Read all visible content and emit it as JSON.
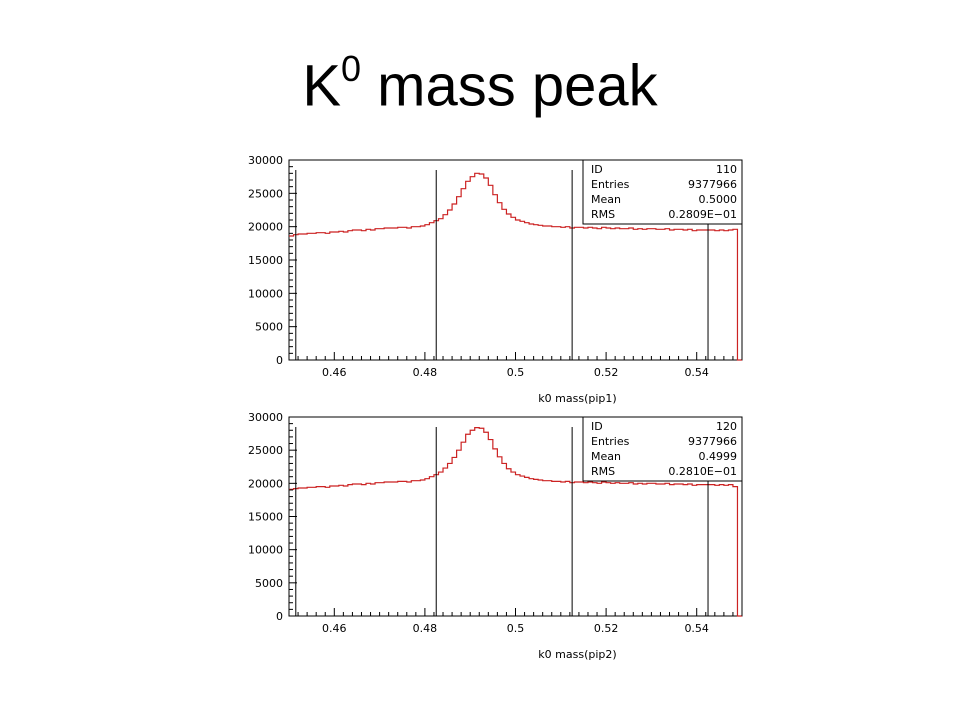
{
  "slide": {
    "title_main": "K",
    "title_sup": "0",
    "title_rest": " mass peak"
  },
  "style": {
    "line_color": "#cc2222",
    "axis_color": "#000000"
  },
  "chart_data": [
    {
      "type": "histogram",
      "xlabel": "k0 mass(pip1)",
      "ylabel": "",
      "xlim": [
        0.45,
        0.55
      ],
      "ylim": [
        0,
        30000
      ],
      "grid": false,
      "xticks": [
        "0.46",
        "0.48",
        "0.5",
        "0.52",
        "0.54"
      ],
      "yticks": [
        "0",
        "5000",
        "10000",
        "15000",
        "20000",
        "25000",
        "30000"
      ],
      "vertical_lines": [
        0.4515,
        0.4825,
        0.5125,
        0.5425
      ],
      "stats": {
        "ID": "110",
        "Entries": "9377966",
        "Mean": "0.5000",
        "RMS": "0.2809E−01"
      },
      "bins_x_start": 0.45,
      "bin_width": 0.001,
      "values": [
        18600,
        18800,
        18900,
        18900,
        19000,
        19000,
        19100,
        19100,
        19000,
        19200,
        19200,
        19300,
        19200,
        19400,
        19500,
        19500,
        19400,
        19600,
        19500,
        19700,
        19700,
        19800,
        19800,
        19800,
        19900,
        19900,
        19800,
        20000,
        20000,
        20100,
        20300,
        20600,
        20900,
        21200,
        21800,
        22500,
        23400,
        24500,
        25700,
        26800,
        27500,
        28000,
        27900,
        27300,
        26200,
        24800,
        23600,
        22600,
        21900,
        21400,
        21000,
        20800,
        20600,
        20400,
        20300,
        20200,
        20100,
        20100,
        20000,
        20000,
        19900,
        20000,
        19800,
        19900,
        19900,
        19800,
        19900,
        19800,
        19700,
        19900,
        19800,
        19700,
        19800,
        19700,
        19700,
        19800,
        19600,
        19700,
        19600,
        19700,
        19700,
        19600,
        19600,
        19700,
        19500,
        19600,
        19600,
        19500,
        19600,
        19400,
        19500,
        19500,
        19500,
        19500,
        19400,
        19500,
        19400,
        19500,
        19600,
        0
      ]
    },
    {
      "type": "histogram",
      "xlabel": "k0 mass(pip2)",
      "ylabel": "",
      "xlim": [
        0.45,
        0.55
      ],
      "ylim": [
        0,
        30000
      ],
      "grid": false,
      "xticks": [
        "0.46",
        "0.48",
        "0.5",
        "0.52",
        "0.54"
      ],
      "yticks": [
        "0",
        "5000",
        "10000",
        "15000",
        "20000",
        "25000",
        "30000"
      ],
      "vertical_lines": [
        0.4515,
        0.4825,
        0.5125,
        0.5425
      ],
      "stats": {
        "ID": "120",
        "Entries": "9377966",
        "Mean": "0.4999",
        "RMS": "0.2810E−01"
      },
      "bins_x_start": 0.45,
      "bin_width": 0.001,
      "values": [
        19100,
        19200,
        19300,
        19300,
        19400,
        19400,
        19500,
        19500,
        19400,
        19600,
        19600,
        19700,
        19600,
        19800,
        19900,
        19900,
        19800,
        20000,
        19900,
        20100,
        20100,
        20200,
        20200,
        20200,
        20300,
        20300,
        20200,
        20400,
        20400,
        20500,
        20700,
        21000,
        21300,
        21700,
        22300,
        23000,
        23900,
        25000,
        26200,
        27400,
        28000,
        28400,
        28300,
        27700,
        26600,
        25200,
        24000,
        23000,
        22200,
        21700,
        21300,
        21100,
        20900,
        20700,
        20600,
        20500,
        20400,
        20400,
        20300,
        20300,
        20200,
        20300,
        20100,
        20200,
        20200,
        20100,
        20200,
        20100,
        20000,
        20200,
        20100,
        20000,
        20100,
        20000,
        20000,
        20100,
        19900,
        20000,
        19900,
        20000,
        20000,
        19900,
        19900,
        20000,
        19800,
        19900,
        19900,
        19800,
        19900,
        19700,
        19800,
        19800,
        19800,
        19800,
        19700,
        19800,
        19700,
        19800,
        19500,
        0
      ]
    }
  ]
}
